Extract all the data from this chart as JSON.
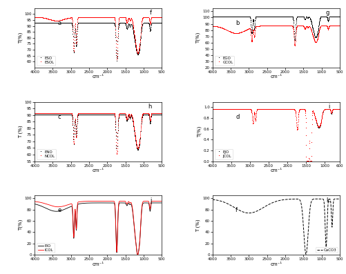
{
  "panels": [
    {
      "label": "a",
      "legend": [
        "ESO",
        "ESOL"
      ],
      "colors": [
        "black",
        "red"
      ],
      "ylim": [
        55,
        105
      ],
      "yticks": [
        60,
        65,
        70,
        75,
        80,
        85,
        90,
        95,
        100
      ],
      "ylabel": "T(%)",
      "xlabel": "cm⁻¹",
      "xmin": 4000,
      "xmax": 500,
      "ann_body": "a",
      "ann_top": "f"
    },
    {
      "label": "b",
      "legend": [
        "EGO",
        "GCOL"
      ],
      "colors": [
        "black",
        "red"
      ],
      "ylim": [
        20,
        115
      ],
      "yticks": [
        20,
        30,
        40,
        50,
        60,
        70,
        80,
        90,
        100,
        110
      ],
      "ylabel": "T(%)",
      "xlabel": "cm⁻¹",
      "xmin": 4000,
      "xmax": 500,
      "ann_body": "b",
      "ann_top": "g"
    },
    {
      "label": "c",
      "legend": [
        "ENO",
        "NCOL"
      ],
      "colors": [
        "black",
        "red"
      ],
      "ylim": [
        55,
        100
      ],
      "yticks": [
        55,
        60,
        65,
        70,
        75,
        80,
        85,
        90,
        95,
        100
      ],
      "ylabel": "T (%)",
      "xlabel": "cm⁻¹",
      "xmin": 4000,
      "xmax": 500,
      "ann_body": "c",
      "ann_top": "h"
    },
    {
      "label": "d",
      "legend": [
        "EJO",
        "JCOL"
      ],
      "colors": [
        "black",
        "red"
      ],
      "ylim": [
        0.0,
        1.1
      ],
      "yticks": [
        0.0,
        0.2,
        0.4,
        0.6,
        0.8,
        1.0
      ],
      "ylabel": "T(%)",
      "xlabel": "cm⁻¹",
      "xmin": 4000,
      "xmax": 600,
      "ann_body": "d",
      "ann_top": "i"
    },
    {
      "label": "e",
      "legend": [
        "EIO",
        "ICOL"
      ],
      "colors": [
        "black",
        "red"
      ],
      "ylim": [
        0,
        105
      ],
      "yticks": [
        0,
        20,
        40,
        60,
        80,
        100
      ],
      "ylabel": "T(%)",
      "xlabel": "cm⁻¹",
      "xmin": 4000,
      "xmax": 500,
      "ann_body": "e",
      "ann_top": "j"
    },
    {
      "label": "f",
      "legend": [
        "CaCO3"
      ],
      "colors": [
        "black"
      ],
      "ylim": [
        0,
        105
      ],
      "yticks": [
        0,
        20,
        40,
        60,
        80,
        100
      ],
      "ylabel": "T (%)",
      "xlabel": "cm⁻¹",
      "xmin": 4000,
      "xmax": 500,
      "ann_body": "f",
      "ann_top": "k"
    }
  ]
}
